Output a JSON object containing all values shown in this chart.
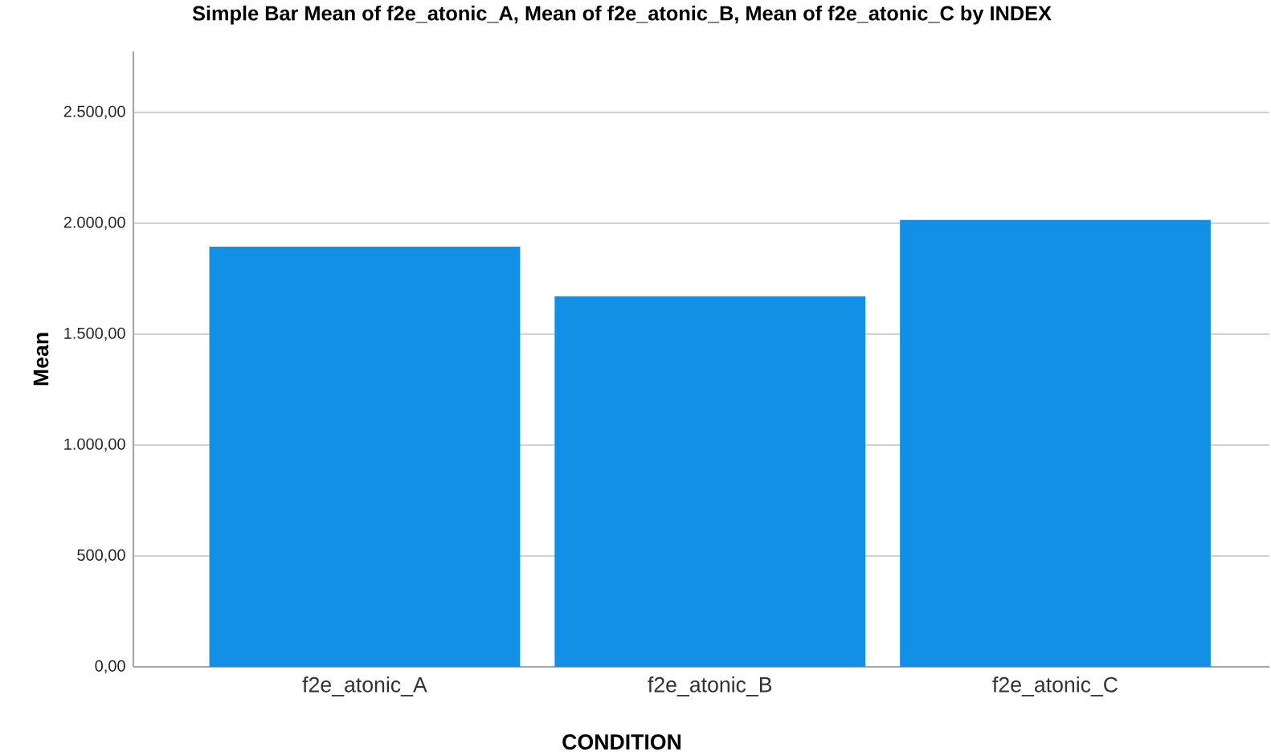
{
  "chart_data": {
    "type": "bar",
    "title": "Simple Bar Mean of f2e_atonic_A, Mean of f2e_atonic_B, Mean of f2e_atonic_C by INDEX",
    "xlabel": "CONDITION",
    "ylabel": "Mean",
    "categories": [
      "f2e_atonic_A",
      "f2e_atonic_B",
      "f2e_atonic_C"
    ],
    "values": [
      1895,
      1671,
      2015
    ],
    "color": "#1290e6",
    "ylim": [
      0,
      2775
    ],
    "yticks": [
      {
        "value": 0,
        "label": "0,00"
      },
      {
        "value": 500,
        "label": "500,00"
      },
      {
        "value": 1000,
        "label": "1.000,00"
      },
      {
        "value": 1500,
        "label": "1.500,00"
      },
      {
        "value": 2000,
        "label": "2.000,00"
      },
      {
        "value": 2500,
        "label": "2.500,00"
      }
    ],
    "grid": "y"
  }
}
